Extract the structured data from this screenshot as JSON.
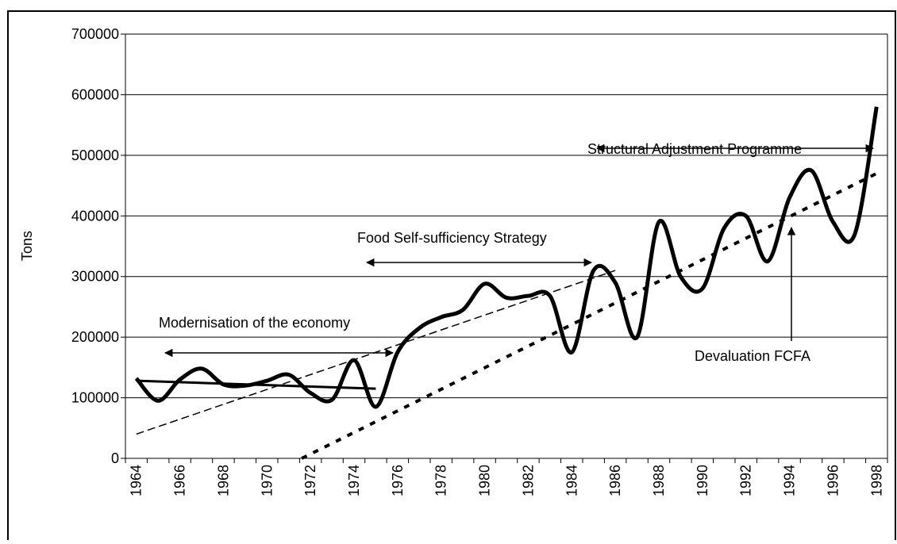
{
  "chart_data": {
    "type": "line",
    "y_label": "Tons",
    "categories": [
      "1964",
      null,
      "1966",
      null,
      "1968",
      null,
      "1970",
      null,
      "1972",
      null,
      "1974",
      null,
      "1976",
      null,
      "1978",
      null,
      "1980",
      null,
      "1982",
      null,
      "1984",
      null,
      "1986",
      null,
      "1988",
      null,
      "1990",
      null,
      "1992",
      null,
      "1994",
      null,
      "1996",
      null,
      "1998"
    ],
    "series": [
      {
        "color": "#000000",
        "values": [
          132000,
          95000,
          130000,
          148000,
          122000,
          120000,
          128000,
          138000,
          108000,
          97000,
          162000,
          85000,
          175000,
          215000,
          233000,
          245000,
          288000,
          265000,
          268000,
          268000,
          175000,
          310000,
          290000,
          200000,
          390000,
          300000,
          280000,
          380000,
          400000,
          325000,
          430000,
          475000,
          390000,
          370000,
          580000
        ]
      }
    ],
    "trend_lines": [
      {
        "x": [
          1964,
          1975
        ],
        "values": [
          128000,
          115000
        ],
        "style": "solid"
      },
      {
        "x": [
          1964,
          1986
        ],
        "values": [
          40000,
          310000
        ],
        "style": "dashed"
      },
      {
        "x": [
          1971.6,
          1998
        ],
        "values": [
          0,
          470000
        ],
        "style": "dotted"
      }
    ],
    "ylim": [
      0,
      700000
    ],
    "yticks": [
      0,
      100000,
      200000,
      300000,
      400000,
      500000,
      600000,
      700000
    ],
    "grid": true,
    "annotations": [
      "Modernisation of the economy",
      "Food Self-sufficiency Strategy",
      "Structural Adjustment Programme",
      "Devaluation FCFA"
    ]
  }
}
